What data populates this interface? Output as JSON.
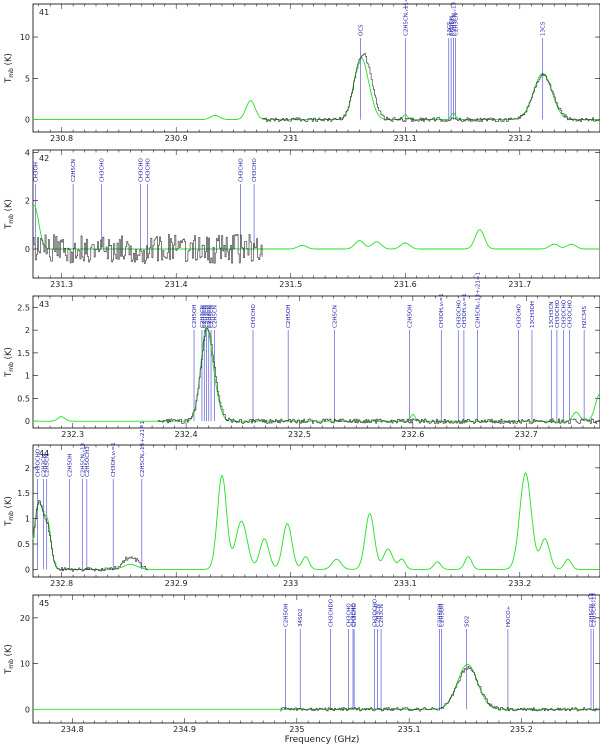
{
  "colors": {
    "observed": "#2b2b2b",
    "model": "#22e022",
    "lines": "#4040d0",
    "frame": "#000000"
  },
  "chart_data": [
    {
      "type": "line",
      "panel_label": "41",
      "ylabel": "T_mb (K)",
      "xlim": [
        230.775,
        231.27
      ],
      "ylim": [
        -1.5,
        14
      ],
      "xticks": [
        230.8,
        230.9,
        231,
        231.1,
        231.2
      ],
      "xtick_labels": [
        "230.8",
        "230.9",
        "231",
        "231.1",
        "231.2"
      ],
      "yticks": [
        0,
        5,
        10
      ],
      "observed_range": [
        230.975,
        231.27
      ],
      "noise": 0.25,
      "features": [
        {
          "f": 231.061,
          "obs": 7.0,
          "mod": 7.2,
          "w": 0.006
        },
        {
          "f": 231.069,
          "obs": 2.5,
          "mod": 1.0,
          "w": 0.005
        },
        {
          "f": 231.22,
          "obs": 5.4,
          "mod": 5.6,
          "w": 0.008
        }
      ],
      "model_only": [
        {
          "f": 230.965,
          "a": 2.3,
          "w": 0.004
        },
        {
          "f": 230.934,
          "a": 0.5,
          "w": 0.004
        },
        {
          "f": 231.1,
          "a": 0.6,
          "w": 0.002
        },
        {
          "f": 231.142,
          "a": 0.8,
          "w": 0.002
        }
      ],
      "lines": [
        {
          "f": 231.061,
          "label": "OCS"
        },
        {
          "f": 231.1,
          "label": "C2H5CN,v11=1"
        },
        {
          "f": 231.138,
          "label": "13CS"
        },
        {
          "f": 231.14,
          "label": "CH3OH"
        },
        {
          "f": 231.142,
          "label": "C2H5CN,v13"
        },
        {
          "f": 231.144,
          "label": "C2H3CN"
        },
        {
          "f": 231.22,
          "label": "13CS"
        }
      ]
    },
    {
      "type": "line",
      "panel_label": "42",
      "ylabel": "T_mb (K)",
      "xlim": [
        231.275,
        231.77
      ],
      "ylim": [
        -1.2,
        4.1
      ],
      "xticks": [
        231.3,
        231.4,
        231.5,
        231.6,
        231.7
      ],
      "xtick_labels": [
        "231.3",
        "231.4",
        "231.5",
        "231.6",
        "231.7"
      ],
      "yticks": [
        0,
        2,
        4
      ],
      "observed_range": [
        231.275,
        231.475
      ],
      "noise": 0.6,
      "features": [],
      "model_only": [
        {
          "f": 231.276,
          "a": 1.8,
          "w": 0.004
        },
        {
          "f": 231.51,
          "a": 0.15,
          "w": 0.004
        },
        {
          "f": 231.56,
          "a": 0.35,
          "w": 0.004
        },
        {
          "f": 231.575,
          "a": 0.3,
          "w": 0.004
        },
        {
          "f": 231.6,
          "a": 0.25,
          "w": 0.004
        },
        {
          "f": 231.665,
          "a": 0.8,
          "w": 0.004
        },
        {
          "f": 231.73,
          "a": 0.2,
          "w": 0.004
        },
        {
          "f": 231.745,
          "a": 0.2,
          "w": 0.004
        }
      ],
      "lines": [
        {
          "f": 231.277,
          "label": "CH3OH"
        },
        {
          "f": 231.31,
          "label": "C2H5CN"
        },
        {
          "f": 231.335,
          "label": "CH3CHO"
        },
        {
          "f": 231.369,
          "label": "CH3CHO"
        },
        {
          "f": 231.375,
          "label": "CH3CHO"
        },
        {
          "f": 231.456,
          "label": "CH3CHO"
        },
        {
          "f": 231.468,
          "label": "CH3CHO"
        }
      ]
    },
    {
      "type": "line",
      "panel_label": "43",
      "ylabel": "T_mb (K)",
      "xlim": [
        232.265,
        232.765
      ],
      "ylim": [
        -0.15,
        2.75
      ],
      "xticks": [
        232.3,
        232.4,
        232.5,
        232.6,
        232.7
      ],
      "xtick_labels": [
        "232.3",
        "232.4",
        "232.5",
        "232.6",
        "232.7"
      ],
      "yticks": [
        0,
        0.5,
        1,
        1.5,
        2,
        2.5
      ],
      "observed_range": [
        232.375,
        232.765
      ],
      "noise": 0.05,
      "features": [
        {
          "f": 232.418,
          "obs": 2.0,
          "mod": 2.05,
          "w": 0.005
        },
        {
          "f": 232.427,
          "obs": 0.35,
          "mod": 0.3,
          "w": 0.004
        }
      ],
      "model_only": [
        {
          "f": 232.29,
          "a": 0.1,
          "w": 0.003
        },
        {
          "f": 232.6,
          "a": 0.15,
          "w": 0.002
        },
        {
          "f": 232.744,
          "a": 0.2,
          "w": 0.003
        },
        {
          "f": 232.765,
          "a": 0.6,
          "w": 0.004
        }
      ],
      "lines": [
        {
          "f": 232.407,
          "label": "C2H5OH"
        },
        {
          "f": 232.414,
          "label": "C2H3CN"
        },
        {
          "f": 232.416,
          "label": "C2H3CN"
        },
        {
          "f": 232.418,
          "label": "C2H3CN"
        },
        {
          "f": 232.42,
          "label": "C2H3CN"
        },
        {
          "f": 232.422,
          "label": "C2H5CN"
        },
        {
          "f": 232.425,
          "label": "C2H5CN"
        },
        {
          "f": 232.459,
          "label": "CH3CHO"
        },
        {
          "f": 232.49,
          "label": "C2H5OH"
        },
        {
          "f": 232.531,
          "label": "C2H5CN"
        },
        {
          "f": 232.597,
          "label": "C2H5OH"
        },
        {
          "f": 232.625,
          "label": "CH3OH,vt=1"
        },
        {
          "f": 232.64,
          "label": "CH3OCHO"
        },
        {
          "f": 232.645,
          "label": "CH3OH,vt=1"
        },
        {
          "f": 232.657,
          "label": "C2H5CN,v13+v21=1"
        },
        {
          "f": 232.693,
          "label": "CH3CHO"
        },
        {
          "f": 232.705,
          "label": "13CH3OH"
        },
        {
          "f": 232.722,
          "label": "13CH3CN"
        },
        {
          "f": 232.727,
          "label": "CH3OCHO"
        },
        {
          "f": 232.733,
          "label": "CH3OCHO"
        },
        {
          "f": 232.738,
          "label": "CH3OCHO"
        },
        {
          "f": 232.751,
          "label": "H2C34S"
        }
      ]
    },
    {
      "type": "line",
      "panel_label": "44",
      "ylabel": "T_mb (K)",
      "xlim": [
        232.775,
        233.27
      ],
      "ylim": [
        -0.15,
        2.45
      ],
      "xticks": [
        232.8,
        232.9,
        233,
        233.1,
        233.2
      ],
      "xtick_labels": [
        "232.8",
        "232.9",
        "233",
        "233.1",
        "233.2"
      ],
      "yticks": [
        0,
        0.5,
        1,
        1.5,
        2
      ],
      "observed_range": [
        232.775,
        232.875
      ],
      "noise": 0.04,
      "features": [
        {
          "f": 232.78,
          "obs": 1.3,
          "mod": 1.3,
          "w": 0.004
        },
        {
          "f": 232.788,
          "obs": 0.6,
          "mod": 0.8,
          "w": 0.003
        },
        {
          "f": 232.86,
          "obs": 0.25,
          "mod": 0.1,
          "w": 0.006
        }
      ],
      "model_only": [
        {
          "f": 232.94,
          "a": 1.85,
          "w": 0.004
        },
        {
          "f": 232.957,
          "a": 0.95,
          "w": 0.005
        },
        {
          "f": 232.977,
          "a": 0.6,
          "w": 0.004
        },
        {
          "f": 232.997,
          "a": 0.9,
          "w": 0.004
        },
        {
          "f": 233.013,
          "a": 0.25,
          "w": 0.003
        },
        {
          "f": 233.04,
          "a": 0.2,
          "w": 0.004
        },
        {
          "f": 233.069,
          "a": 1.1,
          "w": 0.004
        },
        {
          "f": 233.085,
          "a": 0.4,
          "w": 0.004
        },
        {
          "f": 233.097,
          "a": 0.2,
          "w": 0.003
        },
        {
          "f": 233.128,
          "a": 0.15,
          "w": 0.003
        },
        {
          "f": 233.155,
          "a": 0.25,
          "w": 0.003
        },
        {
          "f": 233.205,
          "a": 1.9,
          "w": 0.005
        },
        {
          "f": 233.222,
          "a": 0.6,
          "w": 0.004
        },
        {
          "f": 233.242,
          "a": 0.2,
          "w": 0.003
        }
      ],
      "lines": [
        {
          "f": 232.779,
          "label": "CH3OCHO"
        },
        {
          "f": 232.784,
          "label": "C2H3CN"
        },
        {
          "f": 232.787,
          "label": "C2H5CN"
        },
        {
          "f": 232.807,
          "label": "C2H5OH"
        },
        {
          "f": 232.818,
          "label": "C2H5CN,v13"
        },
        {
          "f": 232.822,
          "label": "C2H5OCH3"
        },
        {
          "f": 232.845,
          "label": "CH3OH,vt=1"
        },
        {
          "f": 232.87,
          "label": "C2H5CN,v13+v21=1"
        }
      ]
    },
    {
      "type": "line",
      "panel_label": "45",
      "ylabel": "T_mb (K)",
      "xlim": [
        234.765,
        235.27
      ],
      "ylim": [
        -3,
        25
      ],
      "xticks": [
        234.8,
        234.9,
        235,
        235.1,
        235.2
      ],
      "xtick_labels": [
        "234.8",
        "234.9",
        "235",
        "235.1",
        "235.2"
      ],
      "yticks": [
        0,
        10,
        20
      ],
      "observed_range": [
        234.985,
        235.27
      ],
      "noise": 0.4,
      "features": [
        {
          "f": 235.152,
          "obs": 9.0,
          "mod": 9.8,
          "w": 0.009
        }
      ],
      "model_only": [],
      "lines": [
        {
          "f": 234.99,
          "label": "C2H5OH"
        },
        {
          "f": 235.003,
          "label": "34SO2"
        },
        {
          "f": 235.03,
          "label": "CH3CHDO"
        },
        {
          "f": 235.046,
          "label": "CH3CHO"
        },
        {
          "f": 235.05,
          "label": "CH3CHO"
        },
        {
          "f": 235.051,
          "label": "CH3CHO"
        },
        {
          "f": 235.069,
          "label": "CH3OCHO"
        },
        {
          "f": 235.072,
          "label": "C2H3CN"
        },
        {
          "f": 235.075,
          "label": "C2H3CN"
        },
        {
          "f": 235.127,
          "label": "C2H5OH"
        },
        {
          "f": 235.129,
          "label": "C2H5OH"
        },
        {
          "f": 235.151,
          "label": "SO2"
        },
        {
          "f": 235.188,
          "label": "HOCO+"
        },
        {
          "f": 235.262,
          "label": "C2H5CN,v13"
        },
        {
          "f": 235.264,
          "label": "C2H5CN,v13"
        }
      ]
    }
  ],
  "xaxis_title": "Frequency (GHz)"
}
